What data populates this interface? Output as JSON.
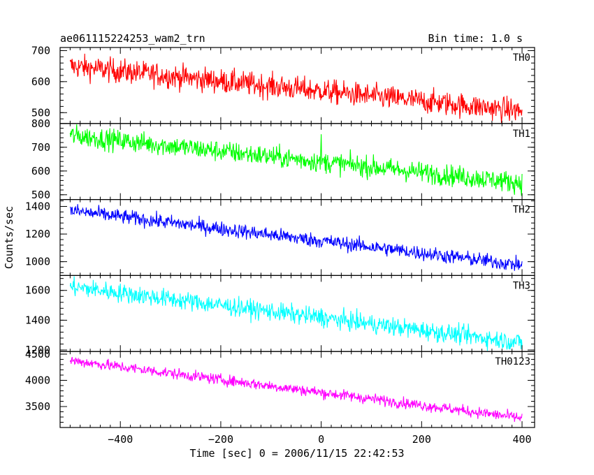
{
  "header": {
    "title": "ae061115224253_wam2_trn",
    "bin_time": "Bin time: 1.0 s"
  },
  "chart_data": {
    "type": "line",
    "xlabel": "Time [sec] 0 = 2006/11/15 22:42:53",
    "ylabel": "Counts/sec",
    "xlim": [
      -520,
      425
    ],
    "x_ticks": [
      -400,
      -200,
      0,
      200,
      400
    ],
    "x_tick_labels": [
      "−400",
      "−200",
      "0",
      "200",
      "400"
    ],
    "x_range": [
      -500,
      400
    ],
    "panels": [
      {
        "name": "TH0",
        "color": "#ff0000",
        "ylim": [
          465,
          710
        ],
        "y_ticks": [
          500,
          600,
          700
        ],
        "y_tick_labels": [
          "500",
          "600",
          "700"
        ],
        "start_mean": 650,
        "end_mean": 505,
        "noise": 28,
        "spike": {
          "x": 0,
          "value": 560
        }
      },
      {
        "name": "TH1",
        "color": "#00ff00",
        "ylim": [
          480,
          800
        ],
        "y_ticks": [
          500,
          600,
          700,
          800
        ],
        "y_tick_labels": [
          "500",
          "600",
          "700",
          "800"
        ],
        "start_mean": 750,
        "end_mean": 550,
        "noise": 32,
        "spike": {
          "x": 0,
          "value": 755
        }
      },
      {
        "name": "TH2",
        "color": "#0000ff",
        "ylim": [
          900,
          1450
        ],
        "y_ticks": [
          1000,
          1200,
          1400
        ],
        "y_tick_labels": [
          "1000",
          "1200",
          "1400"
        ],
        "start_mean": 1370,
        "end_mean": 975,
        "noise": 38,
        "spike": {
          "x": -40,
          "value": 1150
        }
      },
      {
        "name": "TH3",
        "color": "#00ffff",
        "ylim": [
          1190,
          1700
        ],
        "y_ticks": [
          1200,
          1400,
          1600
        ],
        "y_tick_labels": [
          "1200",
          "1400",
          "1600"
        ],
        "start_mean": 1625,
        "end_mean": 1250,
        "noise": 45,
        "spike": {
          "x": 0,
          "value": 1480
        }
      },
      {
        "name": "TH0123",
        "color": "#ff00ff",
        "ylim": [
          3100,
          4550
        ],
        "y_ticks": [
          3500,
          4000,
          4500
        ],
        "y_tick_labels": [
          "3500",
          "4000",
          "4500"
        ],
        "start_mean": 4380,
        "end_mean": 3280,
        "noise": 75,
        "spike": {
          "x": 0,
          "value": 3700
        }
      }
    ]
  }
}
